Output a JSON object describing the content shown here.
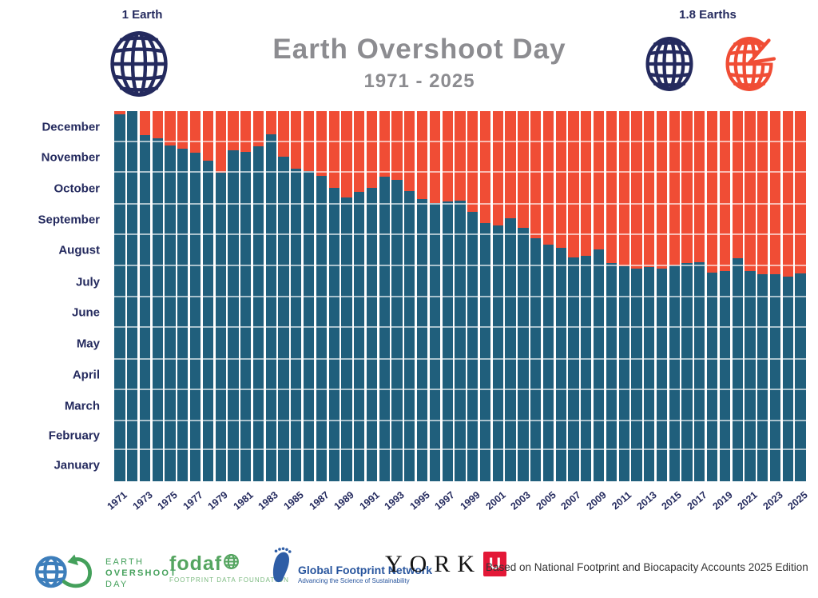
{
  "header": {
    "left_scale_label": "1 Earth",
    "right_scale_label": "1.8 Earths",
    "title": "Earth Overshoot Day",
    "subtitle": "1971 - 2025"
  },
  "chart_data": {
    "type": "bar",
    "subtype": "stacked-vertical",
    "title": "Earth Overshoot Day 1971 - 2025",
    "ylabel": "",
    "xlabel": "",
    "y_axis_unit": "month of year",
    "ylim": [
      "Jan 1",
      "Dec 31"
    ],
    "grid": "horizontal month boundaries, white semi-transparent",
    "months": [
      "January",
      "February",
      "March",
      "April",
      "May",
      "June",
      "July",
      "August",
      "September",
      "October",
      "November",
      "December"
    ],
    "month_days": [
      31,
      28,
      31,
      30,
      31,
      30,
      31,
      31,
      30,
      31,
      30,
      31
    ],
    "x_tick_labels": [
      "1971",
      "1973",
      "1975",
      "1977",
      "1979",
      "1981",
      "1983",
      "1985",
      "1987",
      "1989",
      "1991",
      "1993",
      "1995",
      "1997",
      "1999",
      "2001",
      "2003",
      "2005",
      "2007",
      "2009",
      "2011",
      "2013",
      "2015",
      "2017",
      "2019",
      "2021",
      "2023",
      "2025"
    ],
    "years": [
      1971,
      1972,
      1973,
      1974,
      1975,
      1976,
      1977,
      1978,
      1979,
      1980,
      1981,
      1982,
      1983,
      1984,
      1985,
      1986,
      1987,
      1988,
      1989,
      1990,
      1991,
      1992,
      1993,
      1994,
      1995,
      1996,
      1997,
      1998,
      1999,
      2000,
      2001,
      2002,
      2003,
      2004,
      2005,
      2006,
      2007,
      2008,
      2009,
      2010,
      2011,
      2012,
      2013,
      2014,
      2015,
      2016,
      2017,
      2018,
      2019,
      2020,
      2021,
      2022,
      2023,
      2024,
      2025
    ],
    "overshoot_day_of_year": [
      362,
      365,
      341,
      338,
      331,
      328,
      324,
      316,
      304,
      326,
      325,
      330,
      342,
      320,
      308,
      306,
      301,
      289,
      280,
      285,
      289,
      300,
      297,
      286,
      278,
      274,
      276,
      277,
      266,
      255,
      252,
      259,
      250,
      240,
      233,
      230,
      221,
      222,
      229,
      215,
      212,
      210,
      211,
      210,
      213,
      215,
      216,
      206,
      207,
      220,
      207,
      204,
      204,
      202,
      205
    ],
    "overshoot_dates": [
      "Dec 28",
      "Dec 31",
      "Dec 7",
      "Dec 4",
      "Nov 27",
      "Nov 24",
      "Nov 20",
      "Nov 12",
      "Oct 31",
      "Nov 22",
      "Nov 21",
      "Nov 26",
      "Dec 8",
      "Nov 16",
      "Nov 4",
      "Nov 2",
      "Oct 28",
      "Oct 16",
      "Oct 7",
      "Oct 12",
      "Oct 16",
      "Oct 27",
      "Oct 24",
      "Oct 13",
      "Oct 5",
      "Oct 1",
      "Oct 3",
      "Oct 4",
      "Sep 23",
      "Sep 12",
      "Sep 9",
      "Sep 16",
      "Sep 7",
      "Aug 28",
      "Aug 21",
      "Aug 18",
      "Aug 9",
      "Aug 10",
      "Aug 17",
      "Aug 3",
      "Jul 31",
      "Jul 29",
      "Jul 30",
      "Jul 29",
      "Aug 1",
      "Aug 3",
      "Aug 4",
      "Jul 25",
      "Jul 26",
      "Aug 8",
      "Jul 26",
      "Jul 23",
      "Jul 23",
      "Jul 21",
      "Jul 24"
    ],
    "series_meaning": {
      "teal_bottom": "part of year within Earth's biocapacity (before overshoot day)",
      "orange_top": "part of year in ecological overshoot (after overshoot day)"
    },
    "colors": {
      "before_overshoot": "#205F7C",
      "after_overshoot": "#F04D35",
      "axis_text": "#242A5E",
      "title_text": "#8C8C90"
    },
    "days_in_year": 365
  },
  "footer": {
    "eod_logo": {
      "line1": "EARTH",
      "line2": "OVERSHOOT",
      "line3": "DAY"
    },
    "fodafo": {
      "wordmark": "fodaf",
      "caption": "FOOTPRINT DATA FOUNDATION"
    },
    "gfn": {
      "name": "Global Footprint Network",
      "tagline": "Advancing the Science of Sustainability"
    },
    "york": {
      "wordmark": "YORK",
      "u_glyph": "U"
    },
    "note": "Based on National Footprint and Biocapacity Accounts 2025 Edition"
  }
}
